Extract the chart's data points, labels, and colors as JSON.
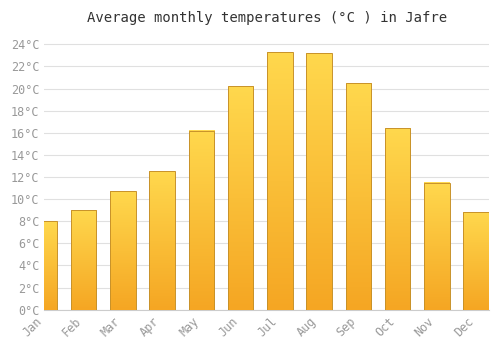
{
  "title": "Average monthly temperatures (°C ) in Jafre",
  "months": [
    "Jan",
    "Feb",
    "Mar",
    "Apr",
    "May",
    "Jun",
    "Jul",
    "Aug",
    "Sep",
    "Oct",
    "Nov",
    "Dec"
  ],
  "values": [
    8.0,
    9.0,
    10.7,
    12.5,
    16.2,
    20.2,
    23.3,
    23.2,
    20.5,
    16.4,
    11.5,
    8.8
  ],
  "bar_color_top": "#FFD84D",
  "bar_color_bottom": "#F5A623",
  "bar_edge_color": "#C8922A",
  "background_color": "#FFFFFF",
  "plot_bg_color": "#FFFFFF",
  "grid_color": "#E0E0E0",
  "ylim": [
    0,
    25
  ],
  "yticks": [
    0,
    2,
    4,
    6,
    8,
    10,
    12,
    14,
    16,
    18,
    20,
    22,
    24
  ],
  "title_fontsize": 10,
  "tick_fontsize": 8.5,
  "bar_width": 0.65
}
